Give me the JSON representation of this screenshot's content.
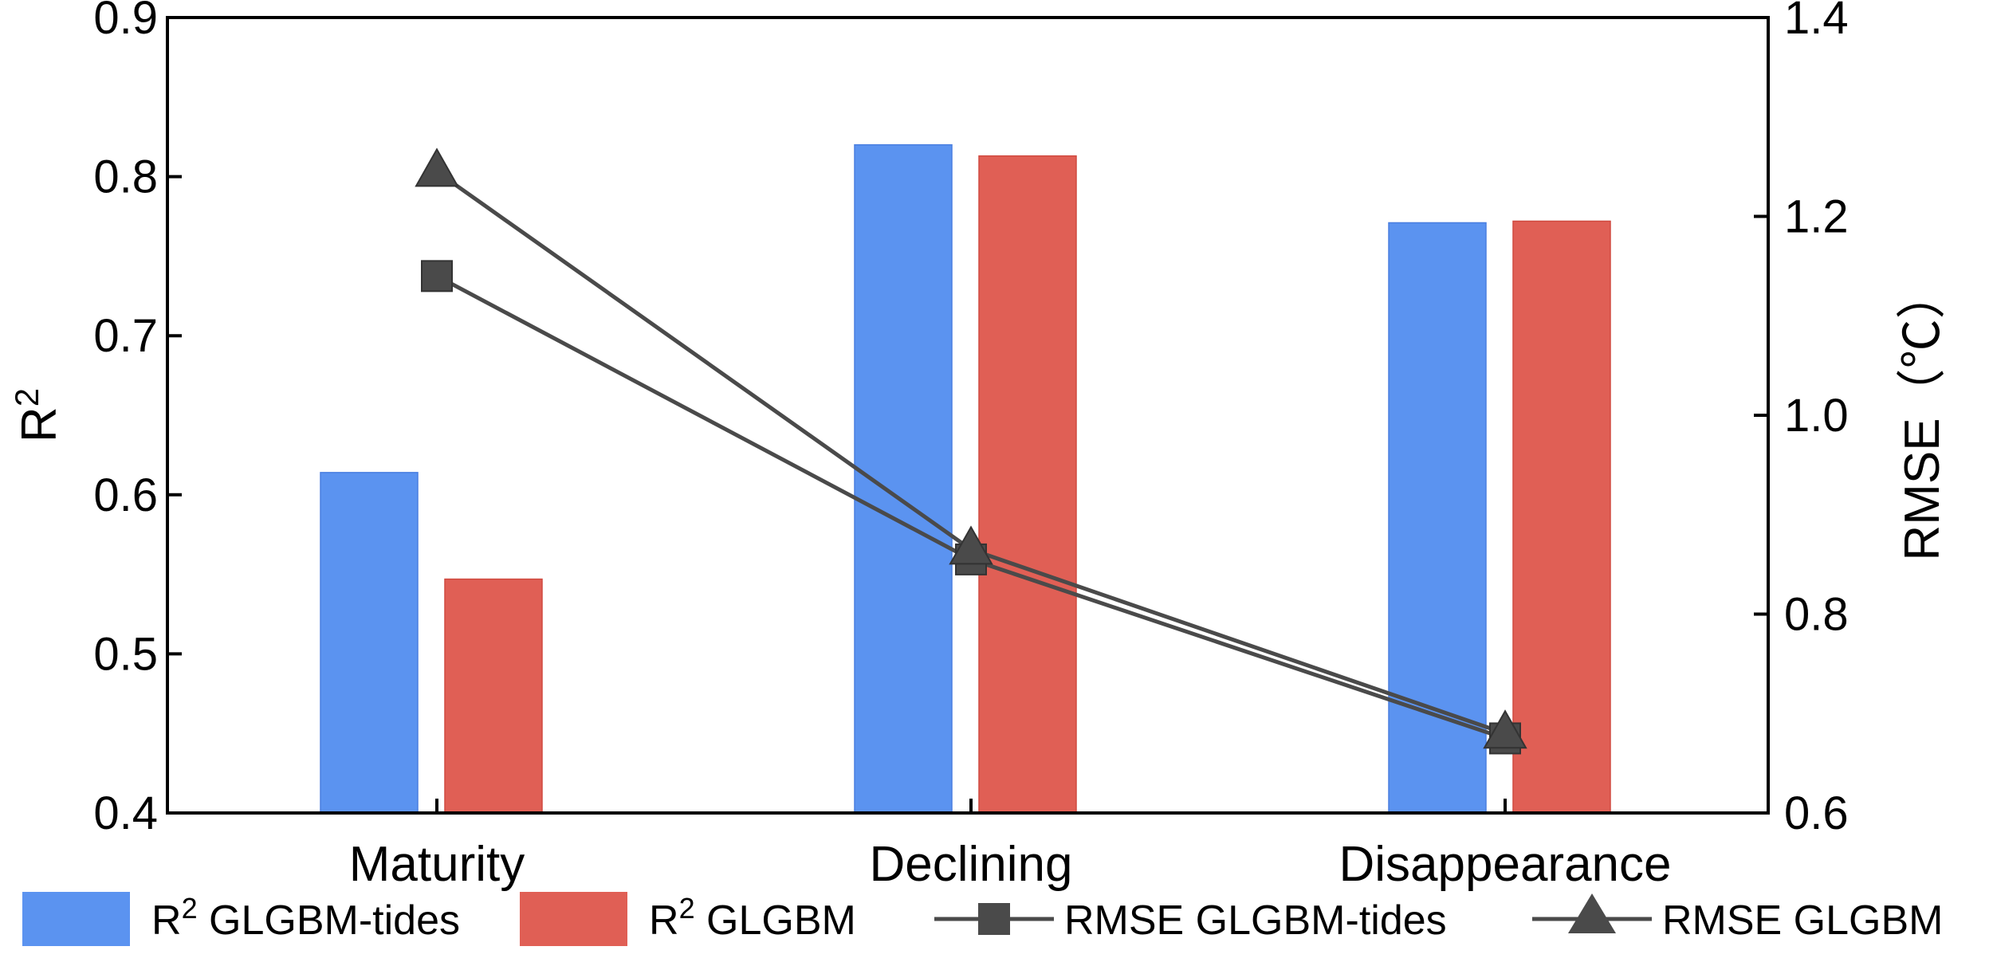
{
  "chart_data": {
    "type": "bar",
    "categories": [
      "Maturity",
      "Declining",
      "Disappearance"
    ],
    "left_axis": {
      "title_base": "R",
      "title_sup": "2",
      "ylim": [
        0.4,
        0.9
      ],
      "ticks": [
        "0.4",
        "0.5",
        "0.6",
        "0.7",
        "0.8",
        "0.9"
      ]
    },
    "right_axis": {
      "title": "RMSE（℃）",
      "ylim": [
        0.6,
        1.4
      ],
      "ticks": [
        "0.6",
        "0.8",
        "1.0",
        "1.2",
        "1.4"
      ]
    },
    "bar_series": [
      {
        "name": "GLGBM-tides",
        "prefix": "R",
        "sup": "2",
        "color": "#5b93f0",
        "values": [
          0.614,
          0.82,
          0.771
        ]
      },
      {
        "name": "GLGBM",
        "prefix": "R",
        "sup": "2",
        "color": "#e05f55",
        "values": [
          0.547,
          0.813,
          0.772
        ]
      }
    ],
    "line_series": [
      {
        "name": "RMSE GLGBM-tides",
        "marker": "square",
        "color": "#4a4a4a",
        "values": [
          1.14,
          0.855,
          0.675
        ]
      },
      {
        "name": "RMSE GLGBM",
        "marker": "triangle",
        "color": "#4a4a4a",
        "values": [
          1.245,
          0.865,
          0.68
        ]
      }
    ],
    "legend_position": "bottom",
    "grid": false
  }
}
